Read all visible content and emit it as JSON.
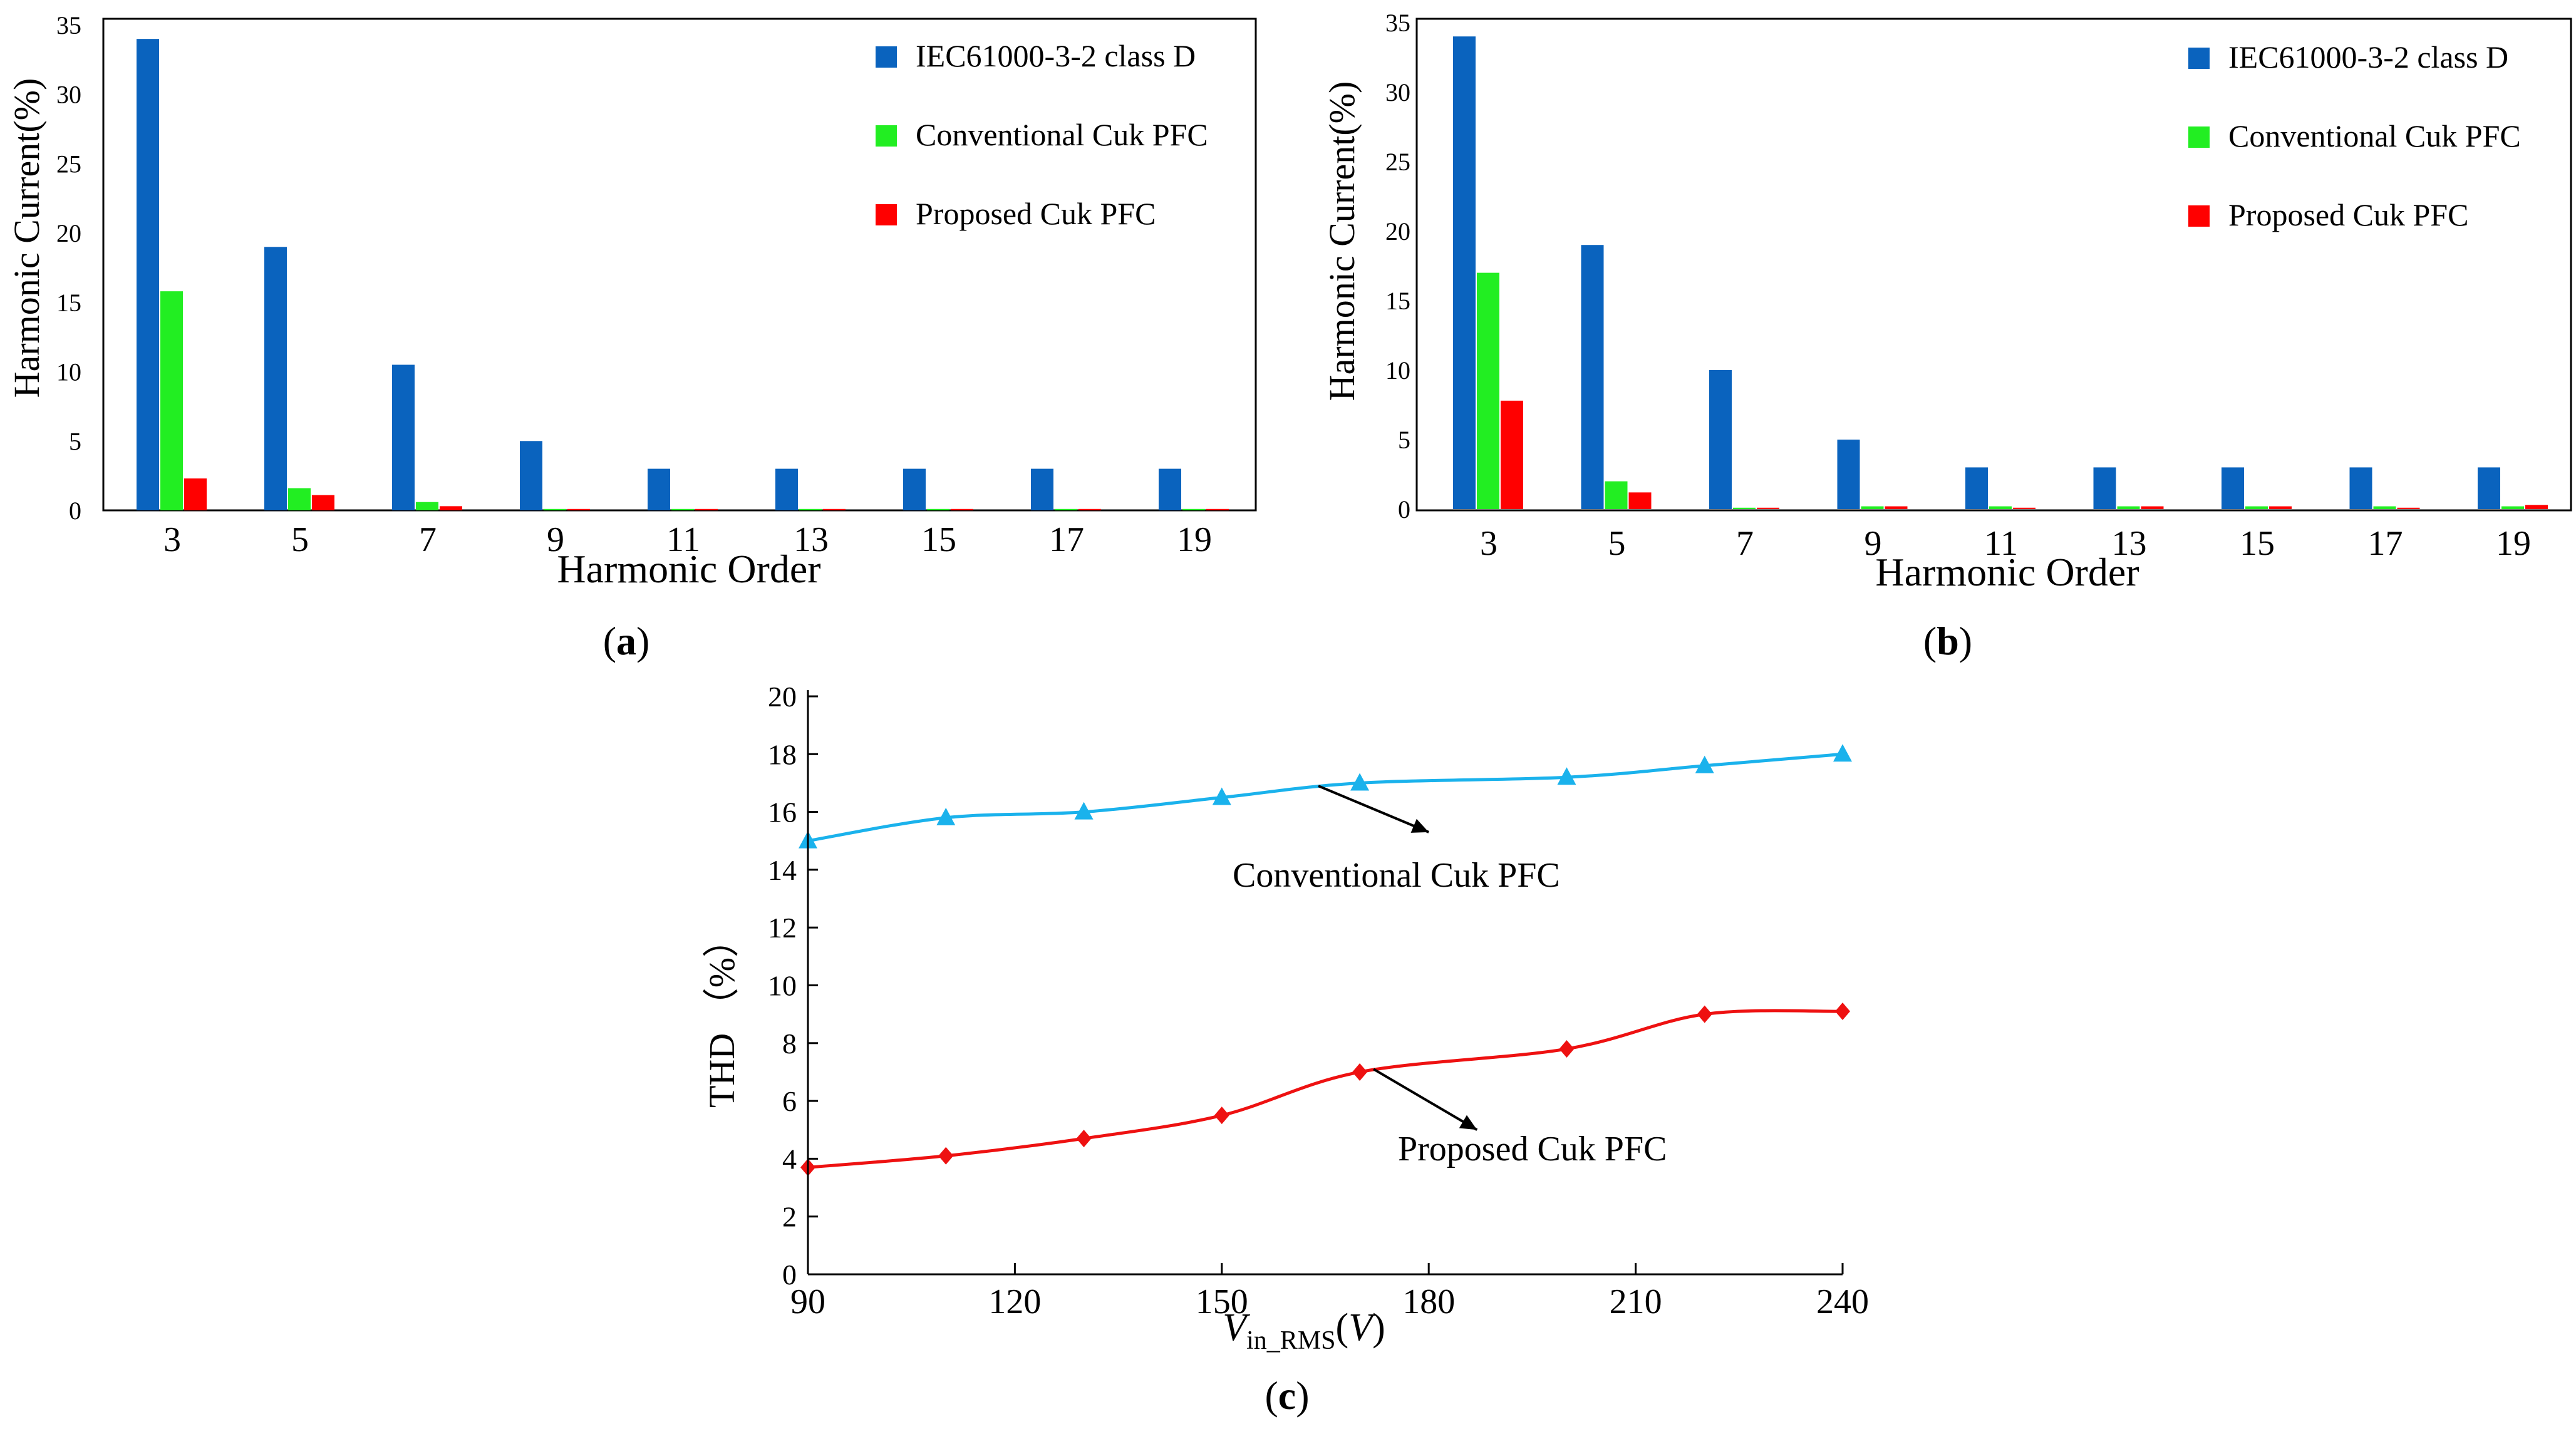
{
  "colors": {
    "iec": "#0a63be",
    "conventional": "#22ee22",
    "proposed": "#ff0000",
    "thd_conventional": "#1ab2ec",
    "thd_proposed": "#ee1111"
  },
  "chart_data": [
    {
      "id": "a",
      "type": "bar",
      "panel_label": "a",
      "xlabel": "Harmonic Order",
      "ylabel": "Harmonic Current(%)",
      "ylim": [
        0,
        35
      ],
      "yticks": [
        "0",
        "5",
        "10",
        "15",
        "20",
        "25",
        "30",
        "35"
      ],
      "categories": [
        "3",
        "5",
        "7",
        "9",
        "11",
        "13",
        "15",
        "17",
        "19"
      ],
      "legend_position": "top-right",
      "series": [
        {
          "name": "IEC61000-3-2 class D",
          "color_key": "iec",
          "values": [
            34,
            19,
            10.5,
            5,
            3,
            3,
            3,
            3,
            3
          ]
        },
        {
          "name": "Conventional Cuk PFC",
          "color_key": "conventional",
          "values": [
            15.8,
            1.6,
            0.6,
            0.1,
            0.1,
            0.1,
            0.1,
            0.1,
            0.1
          ]
        },
        {
          "name": "Proposed Cuk PFC",
          "color_key": "proposed",
          "values": [
            2.3,
            1.1,
            0.3,
            0.1,
            0.1,
            0.1,
            0.1,
            0.1,
            0.1
          ]
        }
      ]
    },
    {
      "id": "b",
      "type": "bar",
      "panel_label": "b",
      "xlabel": "Harmonic Order",
      "ylabel": "Harmonic Current(%)",
      "ylim": [
        0,
        35
      ],
      "yticks": [
        "0",
        "5",
        "10",
        "15",
        "20",
        "25",
        "30",
        "35"
      ],
      "categories": [
        "3",
        "5",
        "7",
        "9",
        "11",
        "13",
        "15",
        "17",
        "19"
      ],
      "legend_position": "top-right",
      "series": [
        {
          "name": "IEC61000-3-2 class D",
          "color_key": "iec",
          "values": [
            34,
            19,
            10,
            5,
            3,
            3,
            3,
            3,
            3
          ]
        },
        {
          "name": "Conventional Cuk PFC",
          "color_key": "conventional",
          "values": [
            17,
            2,
            0.1,
            0.2,
            0.2,
            0.2,
            0.2,
            0.2,
            0.2
          ]
        },
        {
          "name": "Proposed Cuk PFC",
          "color_key": "proposed",
          "values": [
            7.8,
            1.2,
            0.1,
            0.2,
            0.1,
            0.2,
            0.2,
            0.1,
            0.3
          ]
        }
      ]
    },
    {
      "id": "c",
      "type": "line",
      "panel_label": "c",
      "xlabel_main": "V",
      "xlabel_sub": "in_RMS",
      "xlabel_paren_open": "(",
      "xlabel_unit": "V",
      "xlabel_paren_close": ")",
      "ylabel": "THD （%）",
      "xlim": [
        90,
        240
      ],
      "ylim": [
        0,
        20
      ],
      "xticks": [
        "90",
        "120",
        "150",
        "180",
        "210",
        "240"
      ],
      "yticks": [
        "0",
        "2",
        "4",
        "6",
        "8",
        "10",
        "12",
        "14",
        "16",
        "18",
        "20"
      ],
      "series": [
        {
          "name": "Conventional Cuk PFC",
          "color_key": "thd_conventional",
          "marker": "triangle",
          "x": [
            90,
            110,
            130,
            150,
            170,
            200,
            220,
            240
          ],
          "y": [
            15,
            15.8,
            16,
            16.5,
            17,
            17.2,
            17.6,
            18
          ]
        },
        {
          "name": "Proposed Cuk PFC",
          "color_key": "thd_proposed",
          "marker": "diamond",
          "x": [
            90,
            110,
            130,
            150,
            170,
            200,
            220,
            240
          ],
          "y": [
            3.7,
            4.1,
            4.7,
            5.5,
            7,
            7.8,
            9,
            9.1
          ]
        }
      ],
      "annotations": [
        {
          "text": "Conventional Cuk PFC",
          "series": 0
        },
        {
          "text": "Proposed Cuk PFC",
          "series": 1
        }
      ]
    }
  ]
}
